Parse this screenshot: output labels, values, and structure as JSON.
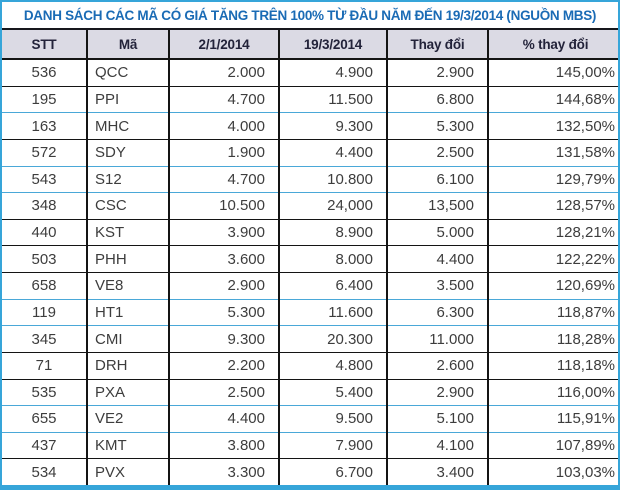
{
  "title": "DANH SÁCH CÁC MÃ CÓ GIÁ TĂNG TRÊN 100% TỪ ĐẦU NĂM ĐẾN 19/3/2014 (NGUỒN MBS)",
  "colors": {
    "title_blue": "#1a6bb5",
    "frame_blue": "#36a5d9",
    "header_bg": "#dbdae4",
    "grid_dark": "#141414",
    "row_sep_blue": "#4aa8d8",
    "cell_text": "#3d3d3d"
  },
  "table": {
    "columns": [
      "STT",
      "Mã",
      "2/1/2014",
      "19/3/2014",
      "Thay đổi",
      "% thay đổi"
    ],
    "rows": [
      [
        "536",
        "QCC",
        "2.000",
        "4.900",
        "2.900",
        "145,00%"
      ],
      [
        "195",
        "PPI",
        "4.700",
        "11.500",
        "6.800",
        "144,68%"
      ],
      [
        "163",
        "MHC",
        "4.000",
        "9.300",
        "5.300",
        "132,50%"
      ],
      [
        "572",
        "SDY",
        "1.900",
        "4.400",
        "2.500",
        "131,58%"
      ],
      [
        "543",
        "S12",
        "4.700",
        "10.800",
        "6.100",
        "129,79%"
      ],
      [
        "348",
        "CSC",
        "10.500",
        "24,000",
        "13,500",
        "128,57%"
      ],
      [
        "440",
        "KST",
        "3.900",
        "8.900",
        "5.000",
        "128,21%"
      ],
      [
        "503",
        "PHH",
        "3.600",
        "8.000",
        "4.400",
        "122,22%"
      ],
      [
        "658",
        "VE8",
        "2.900",
        "6.400",
        "3.500",
        "120,69%"
      ],
      [
        "119",
        "HT1",
        "5.300",
        "11.600",
        "6.300",
        "118,87%"
      ],
      [
        "345",
        "CMI",
        "9.300",
        "20.300",
        "11.000",
        "118,28%"
      ],
      [
        "71",
        "DRH",
        "2.200",
        "4.800",
        "2.600",
        "118,18%"
      ],
      [
        "535",
        "PXA",
        "2.500",
        "5.400",
        "2.900",
        "116,00%"
      ],
      [
        "655",
        "VE2",
        "4.400",
        "9.500",
        "5.100",
        "115,91%"
      ],
      [
        "437",
        "KMT",
        "3.800",
        "7.900",
        "4.100",
        "107,89%"
      ],
      [
        "534",
        "PVX",
        "3.300",
        "6.700",
        "3.400",
        "103,03%"
      ]
    ]
  },
  "chart_data": {
    "type": "table",
    "title": "DANH SÁCH CÁC MÃ CÓ GIÁ TĂNG TRÊN 100% TỪ ĐẦU NĂM ĐẾN 19/3/2014 (NGUỒN MBS)",
    "columns": [
      "STT",
      "Mã",
      "2/1/2014",
      "19/3/2014",
      "Thay đổi",
      "% thay đổi"
    ],
    "tickers": [
      "QCC",
      "PPI",
      "MHC",
      "SDY",
      "S12",
      "CSC",
      "KST",
      "PHH",
      "VE8",
      "HT1",
      "CMI",
      "DRH",
      "PXA",
      "VE2",
      "KMT",
      "PVX"
    ],
    "stt": [
      536,
      195,
      163,
      572,
      543,
      348,
      440,
      503,
      658,
      119,
      345,
      71,
      535,
      655,
      437,
      534
    ],
    "price_2014_01_02": [
      2000,
      4700,
      4000,
      1900,
      4700,
      10500,
      3900,
      3600,
      2900,
      5300,
      9300,
      2200,
      2500,
      4400,
      3800,
      3300
    ],
    "price_2014_03_19": [
      4900,
      11500,
      9300,
      4400,
      10800,
      24000,
      8900,
      8000,
      6400,
      11600,
      20300,
      4800,
      5400,
      9500,
      7900,
      6700
    ],
    "change": [
      2900,
      6800,
      5300,
      2500,
      6100,
      13500,
      5000,
      4400,
      3500,
      6300,
      11000,
      2600,
      2900,
      5100,
      4100,
      3400
    ],
    "pct_change": [
      145.0,
      144.68,
      132.5,
      131.58,
      129.79,
      128.57,
      128.21,
      122.22,
      120.69,
      118.87,
      118.28,
      118.18,
      116.0,
      115.91,
      107.89,
      103.03
    ]
  }
}
